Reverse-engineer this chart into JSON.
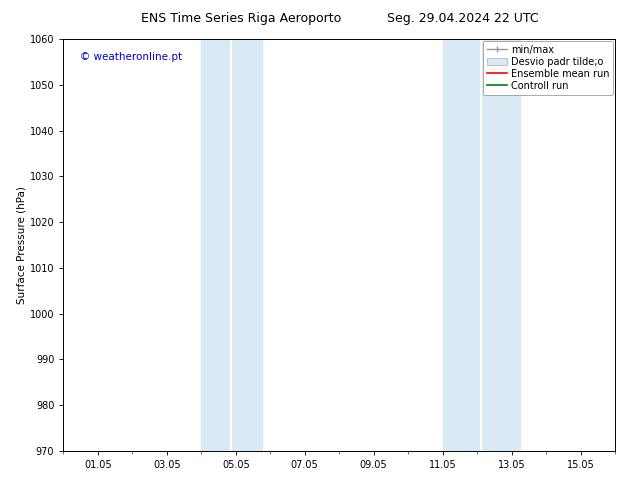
{
  "title_left": "ENS Time Series Riga Aeroporto",
  "title_right": "Seg. 29.04.2024 22 UTC",
  "ylabel": "Surface Pressure (hPa)",
  "ylim": [
    970,
    1060
  ],
  "yticks": [
    970,
    980,
    990,
    1000,
    1010,
    1020,
    1030,
    1040,
    1050,
    1060
  ],
  "xlim": [
    0,
    16
  ],
  "xtick_labels": [
    "01.05",
    "03.05",
    "05.05",
    "07.05",
    "09.05",
    "11.05",
    "13.05",
    "15.05"
  ],
  "xtick_positions": [
    1,
    3,
    5,
    7,
    9,
    11,
    13,
    15
  ],
  "blue_bands": [
    {
      "x_start": 4.0,
      "x_end": 4.75,
      "x_mid": 4.375
    },
    {
      "x_start": 4.75,
      "x_end": 5.75,
      "x_mid": 5.25
    },
    {
      "x_start": 11.0,
      "x_end": 11.75,
      "x_mid": 11.375
    },
    {
      "x_start": 11.75,
      "x_end": 13.25,
      "x_mid": 12.5
    }
  ],
  "blue_band_color": "#daeaf5",
  "legend_labels": [
    "min/max",
    "Desvio padr tilde;o",
    "Ensemble mean run",
    "Controll run"
  ],
  "watermark_text": "© weatheronline.pt",
  "watermark_color": "#0000cc",
  "background_color": "#ffffff",
  "title_fontsize": 9,
  "tick_fontsize": 7,
  "ylabel_fontsize": 7.5,
  "legend_fontsize": 7,
  "watermark_fontsize": 7.5
}
